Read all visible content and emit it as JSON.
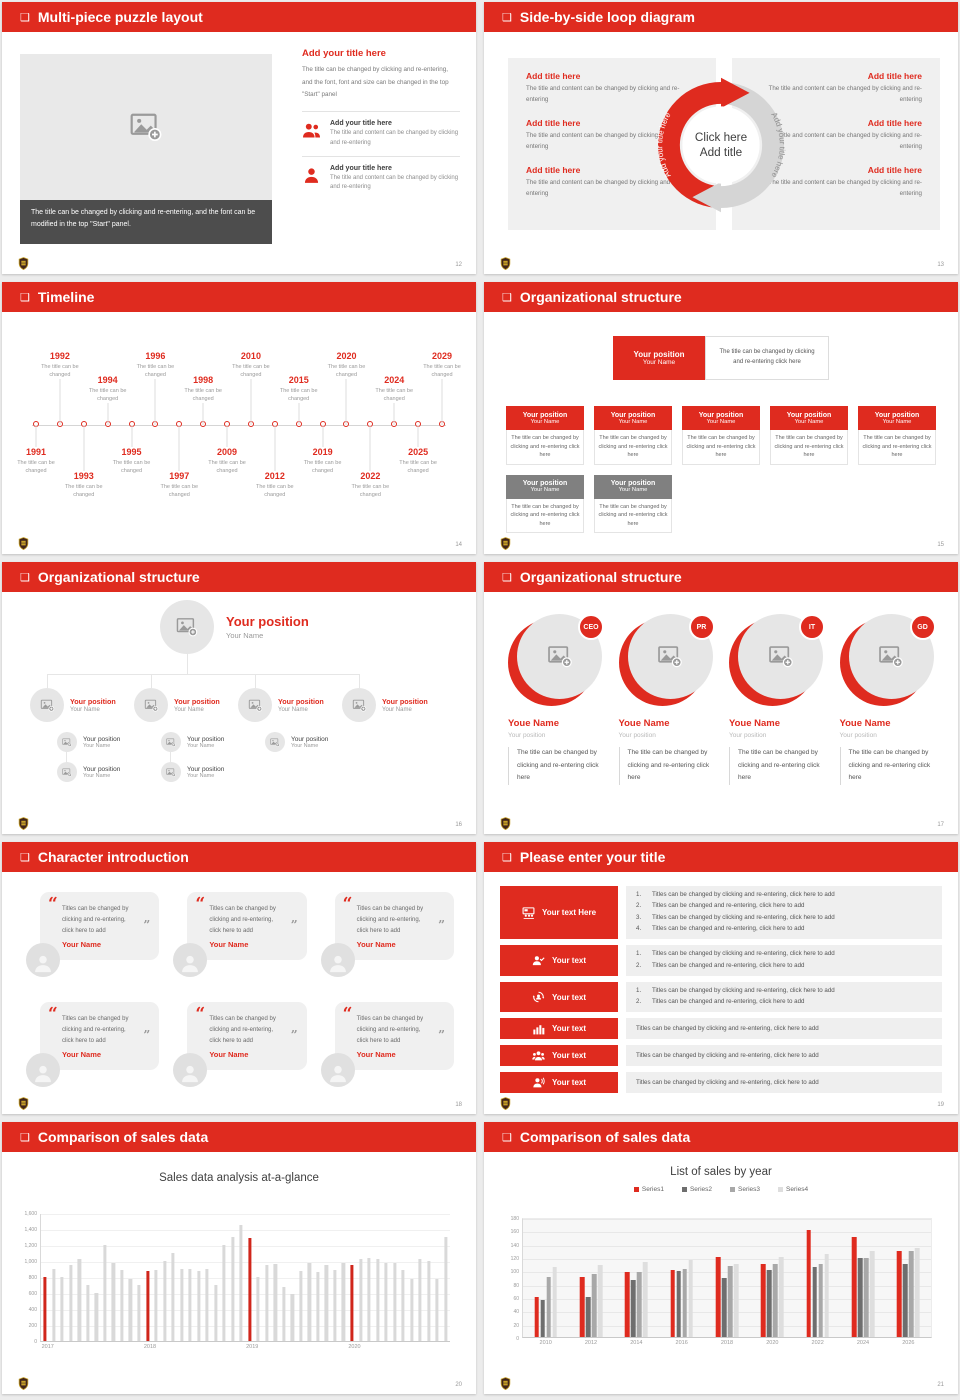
{
  "theme": {
    "accent_red": "#DF2B1F",
    "highlight_red": "#D0261B",
    "gray_header": "#808080",
    "panel_gray": "#F0F0F0",
    "bar_gray": "#D9D9D9",
    "dark_caption": "#4D4D4D",
    "header_glyph": "❑"
  },
  "slides": {
    "puzzle": {
      "title": "Multi-piece puzzle layout",
      "page": "12",
      "caption": "The title can be changed by clicking and re-entering, and the font can be modified in the top \"Start\" panel.",
      "heading": "Add your title here",
      "body": "The title can be changed by clicking and re-entering, and the font, font and size can be changed in the top \"Start\" panel",
      "items": [
        {
          "icon": "people-icon",
          "title": "Add your title here",
          "text": "The title and content can be changed by clicking and re-entering"
        },
        {
          "icon": "person-icon",
          "title": "Add your title here",
          "text": "The title and content can be changed by clicking and re-entering"
        }
      ]
    },
    "loop": {
      "title": "Side-by-side loop diagram",
      "page": "13",
      "center_line1": "Click here",
      "center_line2": "Add title",
      "arc_text_left": "Add your title here",
      "arc_text_right": "Add your title here",
      "left_items": [
        {
          "title": "Add title here",
          "text": "The title and content can be changed by clicking and re-entering"
        },
        {
          "title": "Add title here",
          "text": "The title and content can be changed by clicking and re-entering"
        },
        {
          "title": "Add title here",
          "text": "The title and content can be changed by clicking and re-entering"
        }
      ],
      "right_items": [
        {
          "title": "Add title here",
          "text": "The title and content can be changed by clicking and re-entering"
        },
        {
          "title": "Add title here",
          "text": "The title and content can be changed by clicking and re-entering"
        },
        {
          "title": "Add title here",
          "text": "The title and content can be changed by clicking and re-entering"
        }
      ]
    },
    "timeline": {
      "title": "Timeline",
      "page": "14",
      "item_note": "The title can be changed",
      "years": [
        "1991",
        "1992",
        "1993",
        "1994",
        "1995",
        "1996",
        "1997",
        "1998",
        "2009",
        "2010",
        "2012",
        "2015",
        "2019",
        "2020",
        "2022",
        "2024",
        "2025",
        "2029"
      ]
    },
    "org_boxes": {
      "title": "Organizational structure",
      "page": "15",
      "root": {
        "position": "Your position",
        "name": "Your Name",
        "note": "The title can be changed by clicking and re-entering click here"
      },
      "card_body": "The title can be changed by clicking and re-entering click here",
      "cards_red": [
        {
          "position": "Your position",
          "name": "Your Name"
        },
        {
          "position": "Your position",
          "name": "Your Name"
        },
        {
          "position": "Your position",
          "name": "Your Name"
        },
        {
          "position": "Your position",
          "name": "Your Name"
        },
        {
          "position": "Your position",
          "name": "Your Name"
        }
      ],
      "cards_gray": [
        {
          "position": "Your position",
          "name": "Your Name"
        },
        {
          "position": "Your position",
          "name": "Your Name"
        }
      ]
    },
    "org_tree": {
      "title": "Organizational structure",
      "page": "16",
      "root": {
        "position": "Your position",
        "name": "Your Name"
      },
      "branches": [
        {
          "position": "Your position",
          "name": "Your Name",
          "subs": [
            {
              "position": "Your position",
              "name": "Your Name"
            },
            {
              "position": "Your position",
              "name": "Your Name"
            }
          ]
        },
        {
          "position": "Your position",
          "name": "Your Name",
          "subs": [
            {
              "position": "Your position",
              "name": "Your Name"
            },
            {
              "position": "Your position",
              "name": "Your Name"
            }
          ]
        },
        {
          "position": "Your position",
          "name": "Your Name",
          "subs": [
            {
              "position": "Your position",
              "name": "Your Name"
            }
          ]
        },
        {
          "position": "Your position",
          "name": "Your Name",
          "subs": []
        }
      ]
    },
    "org_circles": {
      "title": "Organizational structure",
      "page": "17",
      "members": [
        {
          "badge": "CEO",
          "name": "Youe Name",
          "position": "Your position",
          "body": "The title can be changed by clicking and re-entering click here"
        },
        {
          "badge": "PR",
          "name": "Youe Name",
          "position": "Your position",
          "body": "The title can be changed by clicking and re-entering click here"
        },
        {
          "badge": "IT",
          "name": "Youe Name",
          "position": "Your position",
          "body": "The title can be changed by clicking and re-entering click here"
        },
        {
          "badge": "GD",
          "name": "Youe Name",
          "position": "Your position",
          "body": "The title can be changed by clicking and re-entering click here"
        }
      ]
    },
    "character": {
      "title": "Character introduction",
      "page": "18",
      "cards": [
        {
          "quote": "Titles can be changed by clicking and re-entering, click here to add",
          "name": "Your Name"
        },
        {
          "quote": "Titles can be changed by clicking and re-entering, click here to add",
          "name": "Your Name"
        },
        {
          "quote": "Titles can be changed by clicking and re-entering, click here to add",
          "name": "Your Name"
        },
        {
          "quote": "Titles can be changed by clicking and re-entering, click here to add",
          "name": "Your Name"
        },
        {
          "quote": "Titles can be changed by clicking and re-entering, click here to add",
          "name": "Your Name"
        },
        {
          "quote": "Titles can be changed by clicking and re-entering, click here to add",
          "name": "Your Name"
        }
      ]
    },
    "title_list": {
      "title": "Please enter your title",
      "page": "19",
      "rows": [
        {
          "icon": "presentation-icon",
          "label": "Your text Here",
          "size": "h52",
          "items": [
            "Titles can be changed by clicking and re-entering, click here to add",
            "Titles can be changed and re-entering, click here to add",
            "Titles can be changed by clicking and re-entering, click here to add",
            "Titles can be changed and re-entering, click here to add"
          ]
        },
        {
          "icon": "person-desk-icon",
          "label": "Your text",
          "size": "h30",
          "items": [
            "Titles can be changed by clicking and re-entering, click here to add",
            "Titles can be changed and re-entering, click here to add"
          ]
        },
        {
          "icon": "person-sync-icon",
          "label": "Your text",
          "size": "h30",
          "items": [
            "Titles can be changed by clicking and re-entering, click here to add",
            "Titles can be changed and re-entering, click here to add"
          ]
        },
        {
          "icon": "bar-chart-icon",
          "label": "Your text",
          "size": "h21",
          "text": "Titles can be changed by clicking and re-entering, click here to add"
        },
        {
          "icon": "people-group-icon",
          "label": "Your text",
          "size": "h21",
          "text": "Titles can be changed by clicking and re-entering, click here to add"
        },
        {
          "icon": "speaker-person-icon",
          "label": "Your text",
          "size": "h21",
          "text": "Titles can be changed by clicking and re-entering, click here to add"
        }
      ]
    },
    "chart1": {
      "title": "Comparison of sales data",
      "page": "20"
    },
    "chart2": {
      "title": "Comparison of sales data",
      "page": "21"
    }
  },
  "chart_data": [
    {
      "type": "bar",
      "title": "Sales data analysis at-a-glance",
      "xlabel": "",
      "ylabel": "",
      "ylim": [
        0,
        1600
      ],
      "ytick_labels": [
        "0",
        "200",
        "400",
        "600",
        "800",
        "1,000",
        "1,200",
        "1,400",
        "1,600"
      ],
      "grid": true,
      "bar_color": "#D9D9D9",
      "highlight_color": "#D0261B",
      "highlight_rule": "first bar of each year group is red",
      "categories": [
        "2017",
        "2018",
        "2019",
        "2020"
      ],
      "groups": [
        {
          "label": "2017",
          "values": [
            800,
            900,
            800,
            950,
            1020,
            700,
            600,
            1200,
            980,
            890,
            780,
            700
          ]
        },
        {
          "label": "2018",
          "values": [
            880,
            890,
            1000,
            1100,
            900,
            900,
            880,
            900,
            700,
            1200,
            1300,
            1450
          ]
        },
        {
          "label": "2019",
          "values": [
            1290,
            800,
            950,
            960,
            670,
            590,
            870,
            980,
            860,
            950,
            890,
            980
          ]
        },
        {
          "label": "2020",
          "values": [
            950,
            1020,
            1040,
            1020,
            980,
            970,
            890,
            780,
            1020,
            1000,
            780,
            1300
          ]
        }
      ]
    },
    {
      "type": "bar",
      "title": "List of sales by year",
      "xlabel": "",
      "ylabel": "",
      "ylim": [
        0,
        180
      ],
      "ytick_step": 20,
      "grid": true,
      "legend_position": "top",
      "categories": [
        "2010",
        "2012",
        "2014",
        "2016",
        "2018",
        "2020",
        "2022",
        "2024",
        "2026"
      ],
      "series": [
        {
          "name": "Series1",
          "color": "#DF2B1F",
          "values": [
            60,
            90,
            98,
            100,
            120,
            110,
            160,
            150,
            129
          ]
        },
        {
          "name": "Series2",
          "color": "#6E6E6E",
          "values": [
            55,
            60,
            85,
            99,
            89,
            100,
            105,
            119,
            110
          ]
        },
        {
          "name": "Series3",
          "color": "#A8A8A8",
          "values": [
            90,
            95,
            97,
            102,
            107,
            110,
            110,
            119,
            129
          ]
        },
        {
          "name": "Series4",
          "color": "#DEDEDE",
          "values": [
            105,
            108,
            112,
            115,
            110,
            120,
            125,
            129,
            134
          ]
        }
      ]
    }
  ]
}
